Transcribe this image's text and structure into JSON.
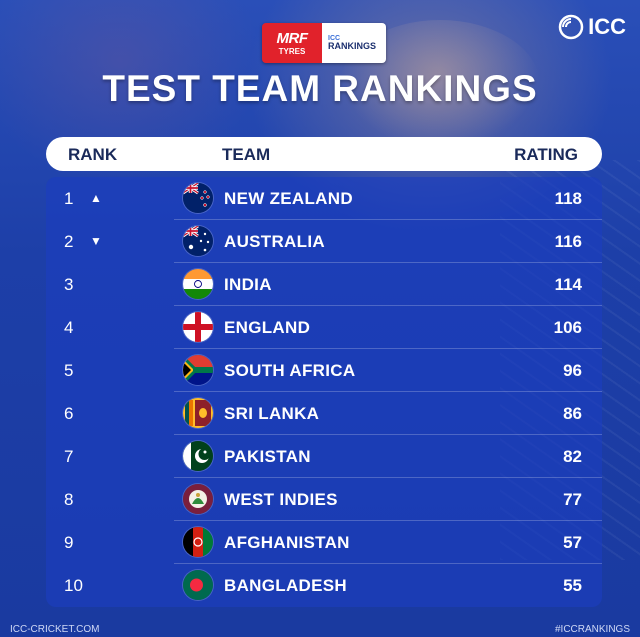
{
  "sponsor": {
    "mrf_line1": "MRF",
    "mrf_line2": "TYRES",
    "icc_line1": "ICC",
    "icc_line2": "RANKINGS"
  },
  "logo": {
    "text": "ICC"
  },
  "title": "TEST TEAM RANKINGS",
  "table": {
    "headers": {
      "rank": "RANK",
      "team": "TEAM",
      "rating": "RATING"
    },
    "rows": [
      {
        "rank": "1",
        "arrow": "▲",
        "flag": "new-zealand-flag",
        "team": "NEW ZEALAND",
        "rating": "118"
      },
      {
        "rank": "2",
        "arrow": "▼",
        "flag": "australia-flag",
        "team": "AUSTRALIA",
        "rating": "116"
      },
      {
        "rank": "3",
        "arrow": "",
        "flag": "india-flag",
        "team": "INDIA",
        "rating": "114"
      },
      {
        "rank": "4",
        "arrow": "",
        "flag": "england-flag",
        "team": "ENGLAND",
        "rating": "106"
      },
      {
        "rank": "5",
        "arrow": "",
        "flag": "south-africa-flag",
        "team": "SOUTH AFRICA",
        "rating": "96"
      },
      {
        "rank": "6",
        "arrow": "",
        "flag": "sri-lanka-flag",
        "team": "SRI LANKA",
        "rating": "86"
      },
      {
        "rank": "7",
        "arrow": "",
        "flag": "pakistan-flag",
        "team": "PAKISTAN",
        "rating": "82"
      },
      {
        "rank": "8",
        "arrow": "",
        "flag": "west-indies-flag",
        "team": "WEST INDIES",
        "rating": "77"
      },
      {
        "rank": "9",
        "arrow": "",
        "flag": "afghanistan-flag",
        "team": "AFGHANISTAN",
        "rating": "57"
      },
      {
        "rank": "10",
        "arrow": "",
        "flag": "bangladesh-flag",
        "team": "BANGLADESH",
        "rating": "55"
      }
    ]
  },
  "footer": {
    "left": "ICC-CRICKET.COM",
    "right": "#ICCRANKINGS"
  },
  "colors": {
    "background": "#1b3fa8",
    "panel": "#1c3ebe",
    "mrf_red": "#e1222b",
    "header_text": "#1a2a5a"
  }
}
